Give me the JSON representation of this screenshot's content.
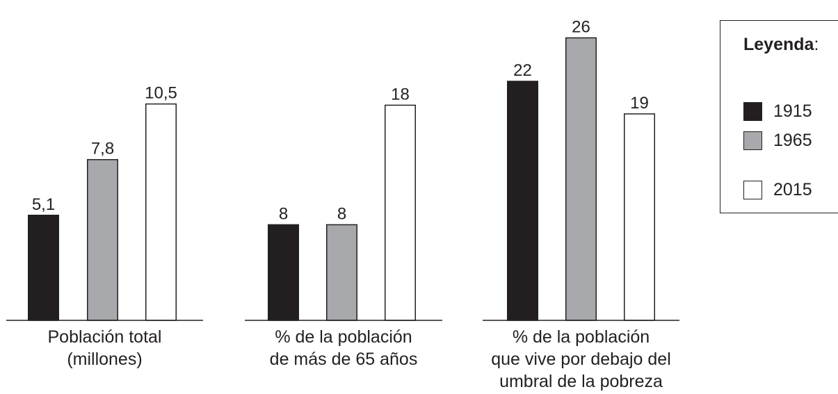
{
  "chart_data": {
    "type": "bar",
    "series": [
      {
        "name": "1915",
        "color": "#231f20",
        "values": [
          5.1,
          8,
          22
        ],
        "labels": [
          "5,1",
          "8",
          "22"
        ]
      },
      {
        "name": "1965",
        "color": "#a7a9ac",
        "values": [
          7.8,
          8,
          26
        ],
        "labels": [
          "7,8",
          "8",
          "26"
        ]
      },
      {
        "name": "2015",
        "color": "#ffffff",
        "values": [
          10.5,
          18,
          19
        ],
        "labels": [
          "10,5",
          "18",
          "19"
        ]
      }
    ],
    "groups": [
      {
        "category": [
          "Población total",
          "(millones)"
        ],
        "ylim": [
          0,
          14.5
        ]
      },
      {
        "category": [
          "% de la población",
          "de más de 65 años"
        ],
        "ylim": [
          0,
          25
        ]
      },
      {
        "category": [
          "% de la población",
          "que vive por debajo del",
          "umbral de la pobreza"
        ],
        "ylim": [
          0,
          27.5
        ]
      }
    ],
    "legend": {
      "title": "Leyenda",
      "title_suffix": ":",
      "position": "top-right"
    }
  }
}
